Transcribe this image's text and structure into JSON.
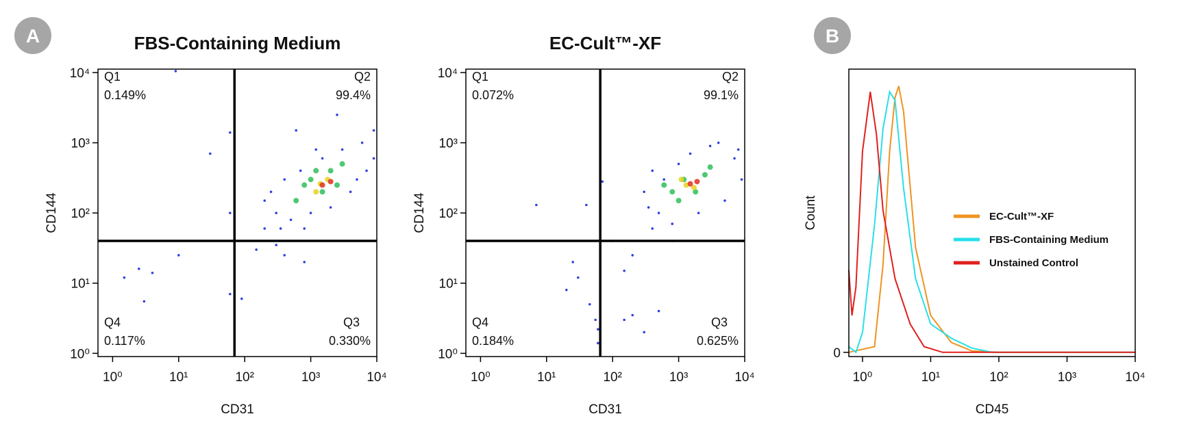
{
  "panels": [
    "A",
    "B"
  ],
  "chart_data": [
    {
      "type": "scatter",
      "title": "FBS-Containing Medium",
      "x_label": "CD31",
      "y_label": "CD144",
      "log_x": true,
      "log_y": true,
      "xlim": [
        0.6,
        10000
      ],
      "ylim": [
        0.9,
        11200
      ],
      "xticks": [
        {
          "value": 1,
          "label": "10⁰"
        },
        {
          "value": 10,
          "label": "10¹"
        },
        {
          "value": 100,
          "label": "10²"
        },
        {
          "value": 1000,
          "label": "10³"
        },
        {
          "value": 10000,
          "label": "10⁴"
        }
      ],
      "yticks": [
        {
          "value": 1,
          "label": "10⁰"
        },
        {
          "value": 10,
          "label": "10¹"
        },
        {
          "value": 100,
          "label": "10²"
        },
        {
          "value": 1000,
          "label": "10³"
        },
        {
          "value": 10000,
          "label": "10⁴"
        }
      ],
      "gate": {
        "x": 70,
        "y": 40
      },
      "quadrants": [
        {
          "name": "Q1",
          "text": "0.149%"
        },
        {
          "name": "Q2",
          "text": "99.4%"
        },
        {
          "name": "Q3",
          "text": "0.330%"
        },
        {
          "name": "Q4",
          "text": "0.117%"
        }
      ],
      "point_groups": [
        {
          "color": "#1a2be0",
          "x": [
            9,
            30,
            60,
            1.5,
            2.5,
            4,
            3,
            10,
            60,
            70,
            90,
            60,
            70,
            150,
            200,
            300,
            400,
            800,
            2500,
            600,
            9000,
            300,
            500,
            800,
            400,
            1500,
            3000,
            6000,
            9000,
            5000,
            2000,
            1000,
            700,
            250,
            200,
            350,
            4000,
            7000,
            1200
          ],
          "y": [
            10500,
            700,
            1400,
            12,
            16,
            14,
            5.5,
            25,
            7,
            12,
            6,
            100,
            60,
            30,
            60,
            35,
            25,
            20,
            2500,
            1500,
            1500,
            100,
            80,
            60,
            300,
            600,
            800,
            1000,
            600,
            300,
            120,
            100,
            400,
            200,
            150,
            60,
            200,
            400,
            800
          ]
        },
        {
          "color": "#2fbf5a",
          "x": [
            600,
            1000,
            1500,
            2000,
            800,
            3000,
            1200,
            2500
          ],
          "y": [
            150,
            300,
            200,
            400,
            250,
            500,
            400,
            250
          ]
        },
        {
          "color": "#e6d41e",
          "x": [
            1200,
            1800,
            1400
          ],
          "y": [
            200,
            300,
            260
          ]
        },
        {
          "color": "#e0301e",
          "x": [
            1500,
            2000
          ],
          "y": [
            250,
            280
          ]
        }
      ]
    },
    {
      "type": "scatter",
      "title": "EC-Cult™-XF",
      "x_label": "CD31",
      "y_label": "CD144",
      "log_x": true,
      "log_y": true,
      "xlim": [
        0.6,
        10000
      ],
      "ylim": [
        0.9,
        11200
      ],
      "xticks": [
        {
          "value": 1,
          "label": "10⁰"
        },
        {
          "value": 10,
          "label": "10¹"
        },
        {
          "value": 100,
          "label": "10²"
        },
        {
          "value": 1000,
          "label": "10³"
        },
        {
          "value": 10000,
          "label": "10⁴"
        }
      ],
      "yticks": [
        {
          "value": 1,
          "label": "10⁰"
        },
        {
          "value": 10,
          "label": "10¹"
        },
        {
          "value": 100,
          "label": "10²"
        },
        {
          "value": 1000,
          "label": "10³"
        },
        {
          "value": 10000,
          "label": "10⁴"
        }
      ],
      "gate": {
        "x": 65,
        "y": 40
      },
      "quadrants": [
        {
          "name": "Q1",
          "text": "0.072%"
        },
        {
          "name": "Q2",
          "text": "99.1%"
        },
        {
          "name": "Q3",
          "text": "0.625%"
        },
        {
          "name": "Q4",
          "text": "0.184%"
        }
      ],
      "point_groups": [
        {
          "color": "#1a2be0",
          "x": [
            25,
            30,
            20,
            45,
            55,
            60,
            60,
            70,
            40,
            7,
            150,
            200,
            500,
            300,
            150,
            200,
            100,
            400,
            800,
            300,
            500,
            800,
            400,
            1500,
            3000,
            7000,
            9000,
            5000,
            2000,
            1000,
            600,
            350,
            4000,
            8000
          ],
          "y": [
            20,
            12,
            8,
            5,
            3,
            2.2,
            1.4,
            280,
            130,
            130,
            3,
            3.5,
            4,
            2,
            15,
            25,
            40,
            60,
            40,
            200,
            100,
            70,
            400,
            700,
            900,
            600,
            300,
            150,
            100,
            500,
            300,
            120,
            1000,
            800
          ]
        },
        {
          "color": "#2fbf5a",
          "x": [
            800,
            1200,
            1800,
            2500,
            1000,
            600,
            3000
          ],
          "y": [
            200,
            300,
            200,
            350,
            150,
            250,
            450
          ]
        },
        {
          "color": "#e6d41e",
          "x": [
            1300,
            1700,
            1100
          ],
          "y": [
            250,
            230,
            300
          ]
        },
        {
          "color": "#e0301e",
          "x": [
            1500,
            1900
          ],
          "y": [
            260,
            280
          ]
        }
      ]
    },
    {
      "type": "line",
      "x_label": "CD45",
      "y_label": "Count",
      "log_x": true,
      "xlim": [
        0.63,
        10000
      ],
      "ylim": [
        -1.5,
        100
      ],
      "xticks": [
        {
          "value": 1,
          "label": "10⁰"
        },
        {
          "value": 10,
          "label": "10¹"
        },
        {
          "value": 100,
          "label": "10²"
        },
        {
          "value": 1000,
          "label": "10³"
        },
        {
          "value": 10000,
          "label": "10⁴"
        }
      ],
      "yticks": [
        0
      ],
      "series": [
        {
          "name": "EC-Cult™-XF",
          "color": "#ef9320",
          "x": [
            0.63,
            1.5,
            2,
            2.5,
            3,
            3.4,
            4,
            6,
            10,
            20,
            40,
            100,
            10000
          ],
          "values": [
            0,
            2,
            31,
            71,
            90,
            94,
            85,
            37,
            13,
            3.5,
            0.5,
            0,
            0
          ]
        },
        {
          "name": "FBS-Containing Medium",
          "color": "#27dfe8",
          "x": [
            0.63,
            0.8,
            1,
            1.5,
            2,
            2.5,
            3,
            4,
            6,
            10,
            20,
            40,
            80,
            10000
          ],
          "values": [
            2,
            0,
            7,
            45,
            79,
            92,
            89,
            58,
            26,
            10,
            5,
            1.5,
            0,
            0
          ]
        },
        {
          "name": "Unstained Control",
          "color": "#e0201e",
          "x": [
            0.63,
            0.7,
            0.8,
            1,
            1.3,
            1.6,
            2,
            3,
            5,
            8,
            15,
            100,
            10000
          ],
          "values": [
            29,
            13,
            23,
            71,
            92,
            77,
            50,
            26,
            10,
            2,
            0,
            0,
            0
          ]
        }
      ]
    }
  ]
}
